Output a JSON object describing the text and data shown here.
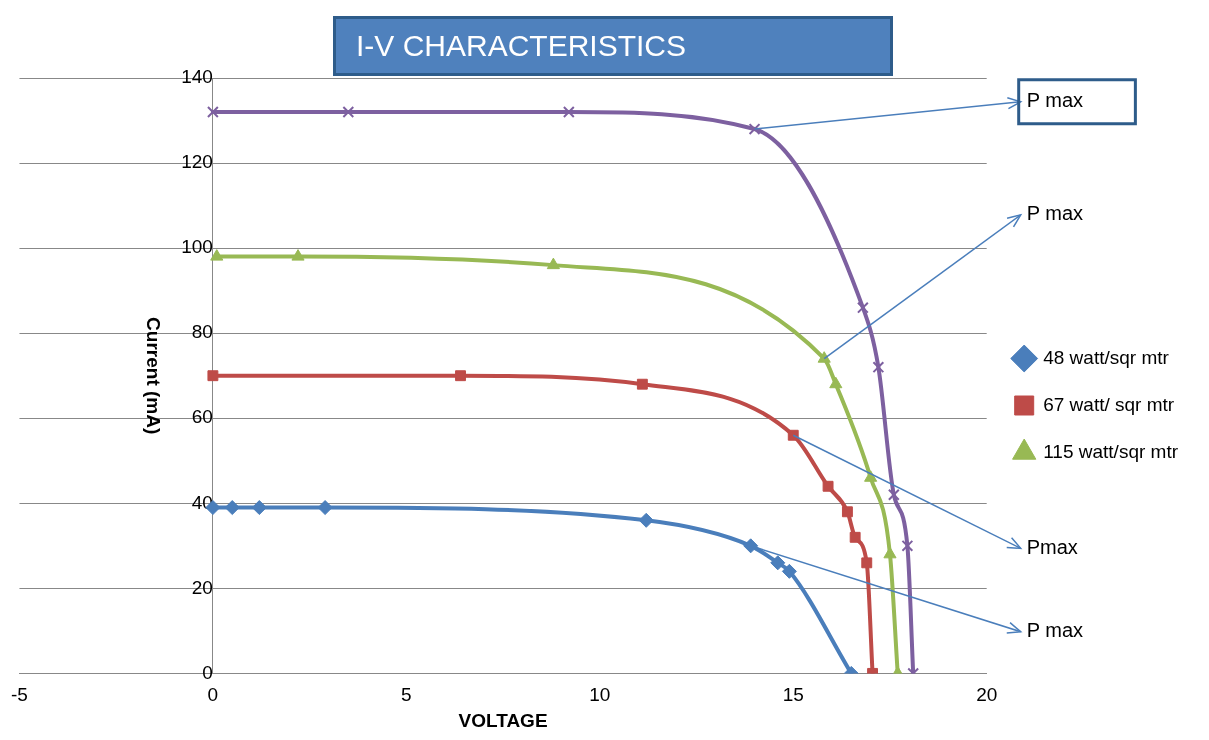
{
  "chart_data": {
    "type": "line",
    "title": "I-V CHARACTERISTICS",
    "xlabel": "VOLTAGE",
    "ylabel": "Current (mA)",
    "xlim": [
      -5,
      20
    ],
    "xticks": [
      -5,
      0,
      5,
      10,
      15,
      20
    ],
    "ylim": [
      0,
      140
    ],
    "yticks": [
      0,
      20,
      40,
      60,
      80,
      100,
      120,
      140
    ],
    "grid": "y",
    "legend": "right",
    "series": [
      {
        "name": "48 watt/sqr mtr",
        "color": "#4a7ebb",
        "marker": "diamond",
        "x": [
          0,
          0.5,
          1.2,
          2.9,
          11.2,
          13.9,
          14.6,
          14.9,
          16.5
        ],
        "values": [
          39,
          39,
          39,
          39,
          36,
          30,
          26,
          24,
          0
        ]
      },
      {
        "name": "67 watt/ sqr mtr",
        "color": "#be4b48",
        "marker": "square",
        "x": [
          0,
          6.4,
          11.1,
          15,
          15.9,
          16.4,
          16.6,
          16.9,
          17.05
        ],
        "values": [
          70,
          70,
          68,
          56,
          44,
          38,
          32,
          26,
          0
        ]
      },
      {
        "name": "115 watt/sqr mtr",
        "color": "#98b954",
        "marker": "triangle",
        "x": [
          0.1,
          2.2,
          8.8,
          15.8,
          16.1,
          17,
          17.5,
          17.7
        ],
        "values": [
          98,
          98,
          96,
          74,
          68,
          46,
          28,
          0
        ]
      },
      {
        "name": null,
        "color": "#7d60a0",
        "marker": "cross",
        "x": [
          0,
          3.5,
          9.2,
          14,
          16.8,
          17.2,
          17.6,
          17.95,
          18.1
        ],
        "values": [
          132,
          132,
          132,
          128,
          86,
          72,
          42,
          30,
          0
        ]
      }
    ],
    "annotations": [
      {
        "text": "P max",
        "x": 13.9,
        "y": 30
      },
      {
        "text": "Pmax",
        "x": 15,
        "y": 56
      },
      {
        "text": "P max",
        "x": 15.8,
        "y": 74
      },
      {
        "text": "P max",
        "x": 14,
        "y": 128
      }
    ]
  }
}
